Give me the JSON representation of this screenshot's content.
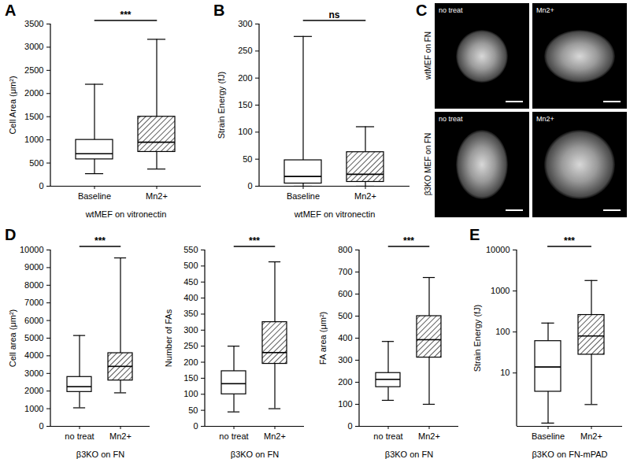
{
  "chart_data": [
    {
      "panel": "A",
      "type": "box",
      "ylabel": "Cell Area (μm²)",
      "xlabel": "wtMEF on vitronectin",
      "categories": [
        "Baseline",
        "Mn2+"
      ],
      "min": [
        270,
        370
      ],
      "q1": [
        580,
        740
      ],
      "median": [
        700,
        950
      ],
      "q3": [
        1000,
        1500
      ],
      "max": [
        2200,
        3170
      ],
      "significance": "***",
      "ylim": [
        0,
        3500
      ],
      "yticks": [
        0,
        500,
        1000,
        1500,
        2000,
        2500,
        3000,
        3500
      ]
    },
    {
      "panel": "B",
      "type": "box",
      "ylabel": "Strain Energy (fJ)",
      "xlabel": "wtMEF on vitronectin",
      "categories": [
        "Baseline",
        "Mn2+"
      ],
      "min": [
        0,
        0
      ],
      "q1": [
        5,
        8
      ],
      "median": [
        18,
        22
      ],
      "q3": [
        48,
        63
      ],
      "max": [
        277,
        110
      ],
      "significance": "ns",
      "ylim": [
        0,
        300
      ],
      "yticks": [
        0,
        50,
        100,
        150,
        200,
        250,
        300
      ]
    },
    {
      "panel": "C",
      "type": "image",
      "rows": [
        {
          "label": "wtMEF on FN",
          "images": [
            "no treat",
            "Mn2+"
          ]
        },
        {
          "label": "β3KO MEF on FN",
          "images": [
            "no treat",
            "Mn2+"
          ]
        }
      ]
    },
    {
      "panel": "D",
      "type": "box",
      "ylabel": "Cell area (μm²)",
      "xlabel": "β3KO on FN",
      "categories": [
        "no treat",
        "Mn2+"
      ],
      "min": [
        1050,
        1900
      ],
      "q1": [
        1950,
        2600
      ],
      "median": [
        2250,
        3400
      ],
      "q3": [
        2800,
        4150
      ],
      "max": [
        5150,
        9550
      ],
      "significance": "***",
      "ylim": [
        0,
        10000
      ],
      "yticks": [
        0,
        1000,
        2000,
        3000,
        4000,
        5000,
        6000,
        7000,
        8000,
        9000,
        10000
      ]
    },
    {
      "type": "box",
      "ylabel": "Number of FAs",
      "xlabel": "β3KO on FN",
      "categories": [
        "no treat",
        "Mn2+"
      ],
      "min": [
        45,
        55
      ],
      "q1": [
        100,
        195
      ],
      "median": [
        133,
        230
      ],
      "q3": [
        172,
        325
      ],
      "max": [
        250,
        513
      ],
      "significance": "***",
      "ylim": [
        0,
        550
      ],
      "yticks": [
        0,
        50,
        100,
        150,
        200,
        250,
        300,
        350,
        400,
        450,
        500,
        550
      ]
    },
    {
      "type": "box",
      "ylabel": "FA area (μm²)",
      "xlabel": "β3KO on FN",
      "categories": [
        "no treat",
        "Mn2+"
      ],
      "min": [
        118,
        100
      ],
      "q1": [
        178,
        312
      ],
      "median": [
        213,
        393
      ],
      "q3": [
        242,
        500
      ],
      "max": [
        385,
        675
      ],
      "significance": "***",
      "ylim": [
        0,
        800
      ],
      "yticks": [
        0,
        100,
        200,
        300,
        400,
        500,
        600,
        700,
        800
      ]
    },
    {
      "panel": "E",
      "type": "box",
      "log": "y",
      "ylabel": "Strain Energy (fJ)",
      "xlabel": "β3KO on FN-mPAD",
      "categories": [
        "Baseline",
        "Mn2+"
      ],
      "min": [
        0.6,
        1.7
      ],
      "q1": [
        3.5,
        28
      ],
      "median": [
        14,
        80
      ],
      "q3": [
        60,
        260
      ],
      "max": [
        165,
        1800
      ],
      "significance": "***",
      "ylim": [
        0.5,
        10000
      ],
      "yticks": [
        10,
        100,
        1000,
        10000
      ]
    }
  ]
}
